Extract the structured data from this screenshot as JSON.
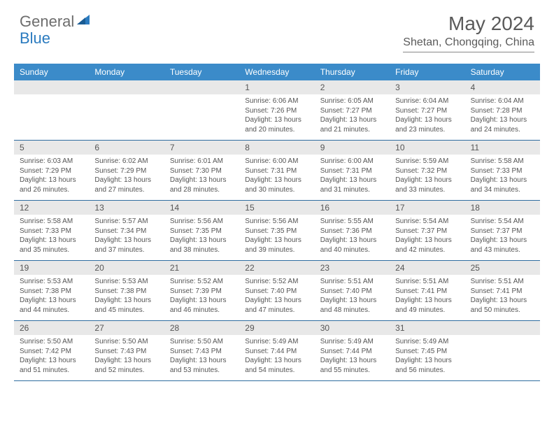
{
  "logo": {
    "text1": "General",
    "text2": "Blue"
  },
  "title": "May 2024",
  "location": "Shetan, Chongqing, China",
  "colors": {
    "header_bg": "#3b8bc9",
    "header_text": "#ffffff",
    "daynum_bg": "#e8e8e8",
    "text": "#555555",
    "rule": "#2f6da0",
    "logo_gray": "#6d6d6d",
    "logo_blue": "#2b7bbf"
  },
  "day_labels": [
    "Sunday",
    "Monday",
    "Tuesday",
    "Wednesday",
    "Thursday",
    "Friday",
    "Saturday"
  ],
  "weeks": [
    [
      {
        "n": "",
        "sr": "",
        "ss": "",
        "dl": ""
      },
      {
        "n": "",
        "sr": "",
        "ss": "",
        "dl": ""
      },
      {
        "n": "",
        "sr": "",
        "ss": "",
        "dl": ""
      },
      {
        "n": "1",
        "sr": "Sunrise: 6:06 AM",
        "ss": "Sunset: 7:26 PM",
        "dl": "Daylight: 13 hours and 20 minutes."
      },
      {
        "n": "2",
        "sr": "Sunrise: 6:05 AM",
        "ss": "Sunset: 7:27 PM",
        "dl": "Daylight: 13 hours and 21 minutes."
      },
      {
        "n": "3",
        "sr": "Sunrise: 6:04 AM",
        "ss": "Sunset: 7:27 PM",
        "dl": "Daylight: 13 hours and 23 minutes."
      },
      {
        "n": "4",
        "sr": "Sunrise: 6:04 AM",
        "ss": "Sunset: 7:28 PM",
        "dl": "Daylight: 13 hours and 24 minutes."
      }
    ],
    [
      {
        "n": "5",
        "sr": "Sunrise: 6:03 AM",
        "ss": "Sunset: 7:29 PM",
        "dl": "Daylight: 13 hours and 26 minutes."
      },
      {
        "n": "6",
        "sr": "Sunrise: 6:02 AM",
        "ss": "Sunset: 7:29 PM",
        "dl": "Daylight: 13 hours and 27 minutes."
      },
      {
        "n": "7",
        "sr": "Sunrise: 6:01 AM",
        "ss": "Sunset: 7:30 PM",
        "dl": "Daylight: 13 hours and 28 minutes."
      },
      {
        "n": "8",
        "sr": "Sunrise: 6:00 AM",
        "ss": "Sunset: 7:31 PM",
        "dl": "Daylight: 13 hours and 30 minutes."
      },
      {
        "n": "9",
        "sr": "Sunrise: 6:00 AM",
        "ss": "Sunset: 7:31 PM",
        "dl": "Daylight: 13 hours and 31 minutes."
      },
      {
        "n": "10",
        "sr": "Sunrise: 5:59 AM",
        "ss": "Sunset: 7:32 PM",
        "dl": "Daylight: 13 hours and 33 minutes."
      },
      {
        "n": "11",
        "sr": "Sunrise: 5:58 AM",
        "ss": "Sunset: 7:33 PM",
        "dl": "Daylight: 13 hours and 34 minutes."
      }
    ],
    [
      {
        "n": "12",
        "sr": "Sunrise: 5:58 AM",
        "ss": "Sunset: 7:33 PM",
        "dl": "Daylight: 13 hours and 35 minutes."
      },
      {
        "n": "13",
        "sr": "Sunrise: 5:57 AM",
        "ss": "Sunset: 7:34 PM",
        "dl": "Daylight: 13 hours and 37 minutes."
      },
      {
        "n": "14",
        "sr": "Sunrise: 5:56 AM",
        "ss": "Sunset: 7:35 PM",
        "dl": "Daylight: 13 hours and 38 minutes."
      },
      {
        "n": "15",
        "sr": "Sunrise: 5:56 AM",
        "ss": "Sunset: 7:35 PM",
        "dl": "Daylight: 13 hours and 39 minutes."
      },
      {
        "n": "16",
        "sr": "Sunrise: 5:55 AM",
        "ss": "Sunset: 7:36 PM",
        "dl": "Daylight: 13 hours and 40 minutes."
      },
      {
        "n": "17",
        "sr": "Sunrise: 5:54 AM",
        "ss": "Sunset: 7:37 PM",
        "dl": "Daylight: 13 hours and 42 minutes."
      },
      {
        "n": "18",
        "sr": "Sunrise: 5:54 AM",
        "ss": "Sunset: 7:37 PM",
        "dl": "Daylight: 13 hours and 43 minutes."
      }
    ],
    [
      {
        "n": "19",
        "sr": "Sunrise: 5:53 AM",
        "ss": "Sunset: 7:38 PM",
        "dl": "Daylight: 13 hours and 44 minutes."
      },
      {
        "n": "20",
        "sr": "Sunrise: 5:53 AM",
        "ss": "Sunset: 7:38 PM",
        "dl": "Daylight: 13 hours and 45 minutes."
      },
      {
        "n": "21",
        "sr": "Sunrise: 5:52 AM",
        "ss": "Sunset: 7:39 PM",
        "dl": "Daylight: 13 hours and 46 minutes."
      },
      {
        "n": "22",
        "sr": "Sunrise: 5:52 AM",
        "ss": "Sunset: 7:40 PM",
        "dl": "Daylight: 13 hours and 47 minutes."
      },
      {
        "n": "23",
        "sr": "Sunrise: 5:51 AM",
        "ss": "Sunset: 7:40 PM",
        "dl": "Daylight: 13 hours and 48 minutes."
      },
      {
        "n": "24",
        "sr": "Sunrise: 5:51 AM",
        "ss": "Sunset: 7:41 PM",
        "dl": "Daylight: 13 hours and 49 minutes."
      },
      {
        "n": "25",
        "sr": "Sunrise: 5:51 AM",
        "ss": "Sunset: 7:41 PM",
        "dl": "Daylight: 13 hours and 50 minutes."
      }
    ],
    [
      {
        "n": "26",
        "sr": "Sunrise: 5:50 AM",
        "ss": "Sunset: 7:42 PM",
        "dl": "Daylight: 13 hours and 51 minutes."
      },
      {
        "n": "27",
        "sr": "Sunrise: 5:50 AM",
        "ss": "Sunset: 7:43 PM",
        "dl": "Daylight: 13 hours and 52 minutes."
      },
      {
        "n": "28",
        "sr": "Sunrise: 5:50 AM",
        "ss": "Sunset: 7:43 PM",
        "dl": "Daylight: 13 hours and 53 minutes."
      },
      {
        "n": "29",
        "sr": "Sunrise: 5:49 AM",
        "ss": "Sunset: 7:44 PM",
        "dl": "Daylight: 13 hours and 54 minutes."
      },
      {
        "n": "30",
        "sr": "Sunrise: 5:49 AM",
        "ss": "Sunset: 7:44 PM",
        "dl": "Daylight: 13 hours and 55 minutes."
      },
      {
        "n": "31",
        "sr": "Sunrise: 5:49 AM",
        "ss": "Sunset: 7:45 PM",
        "dl": "Daylight: 13 hours and 56 minutes."
      },
      {
        "n": "",
        "sr": "",
        "ss": "",
        "dl": ""
      }
    ]
  ]
}
